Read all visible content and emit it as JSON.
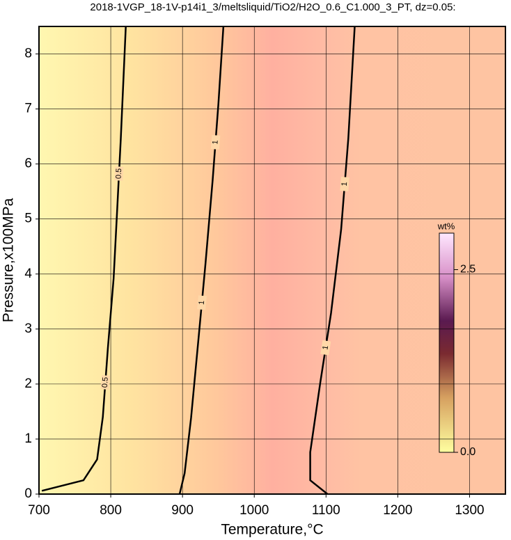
{
  "chart_data": {
    "type": "contour",
    "title": "2018-1VGP_18-1V-p14i1_3/meltsliquid/TiO2/H2O_0.6_C1.000_3_PT, dz=0.05:",
    "x_label": "Temperature,°C",
    "y_label": "Pressure,x100MPa",
    "xlim": [
      700,
      1350
    ],
    "xticks": [
      700,
      800,
      900,
      1000,
      1100,
      1200,
      1300
    ],
    "ylim": [
      0,
      8.5
    ],
    "yticks": [
      0,
      1,
      2,
      3,
      4,
      5,
      6,
      7,
      8
    ],
    "grid": true,
    "contours": [
      {
        "label": "0.5",
        "x": [
          704,
          762,
          781,
          789,
          796,
          804,
          809,
          814,
          821
        ],
        "y": [
          0.06,
          0.25,
          0.63,
          1.4,
          2.66,
          3.92,
          5.19,
          6.46,
          8.5
        ]
      },
      {
        "label": "1",
        "x": [
          896,
          903,
          912,
          922,
          932,
          942,
          950,
          957
        ],
        "y": [
          0,
          0.38,
          1.39,
          2.78,
          4.18,
          5.7,
          7.09,
          8.5
        ]
      },
      {
        "label": "1",
        "x": [
          1102,
          1078,
          1078,
          1092,
          1107,
          1121,
          1131,
          1140
        ],
        "y": [
          0,
          0.25,
          0.76,
          2.03,
          3.29,
          4.81,
          6.46,
          8.5
        ]
      }
    ],
    "colorbar": {
      "label": "wt%",
      "lim": [
        0,
        3.0
      ],
      "ticks": [
        {
          "value": 0,
          "label": "0.0"
        },
        {
          "value": 2.5,
          "label": "2.5"
        }
      ]
    }
  }
}
